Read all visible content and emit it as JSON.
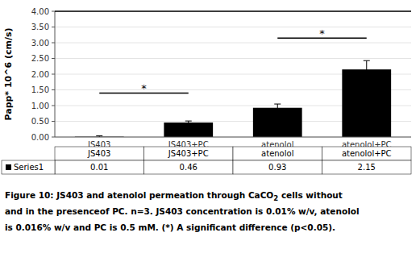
{
  "chart_data": {
    "type": "bar",
    "categories": [
      "JS403",
      "JS403+PC",
      "atenolol",
      "atenolol+PC"
    ],
    "values": [
      0.01,
      0.46,
      0.93,
      2.15
    ],
    "errors": [
      0.03,
      0.05,
      0.12,
      0.28
    ],
    "color": "#000000",
    "ylabel": "Papp* 10^6 (cm/s)",
    "ylim": [
      0,
      4.0
    ],
    "yticks": [
      {
        "value": 0,
        "label": "0.00"
      },
      {
        "value": 0.5,
        "label": "0.50"
      },
      {
        "value": 1,
        "label": "1.00"
      },
      {
        "value": 1.5,
        "label": "1.50"
      },
      {
        "value": 2,
        "label": "2.00"
      },
      {
        "value": 2.5,
        "label": "2.50"
      },
      {
        "value": 3,
        "label": "3.00"
      },
      {
        "value": 3.5,
        "label": "3.50"
      },
      {
        "value": 4,
        "label": "4.00"
      }
    ],
    "annotations": [
      {
        "text": "*",
        "from": "JS403",
        "to": "JS403+PC",
        "y": 1.4,
        "text_y": 1.58
      },
      {
        "text": "*",
        "from": "atenolol",
        "to": "atenolol+PC",
        "y": 3.15,
        "text_y": 3.33
      }
    ],
    "table_label": "Series1",
    "caption_line1": "Figure 10: JS403 and atenolol permeation through CaCO",
    "caption_sub": "2",
    "caption_rest": " cells without",
    "caption_line2": "and in the presenceof PC. n=3. JS403 concentration is 0.01% w/v, atenolol",
    "caption_line3": "is 0.016% w/v and PC is 0.5 mM. (*) A significant difference (p<0.05)."
  }
}
